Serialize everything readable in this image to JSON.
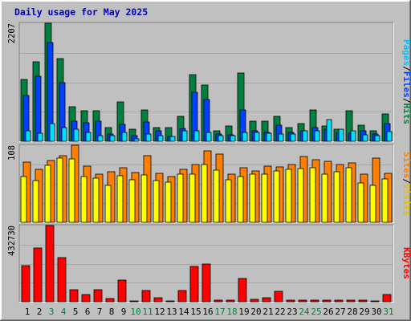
{
  "title": "Daily usage for May 2025",
  "colors": {
    "background": "#c0c0c0",
    "title": "#0000ff",
    "hits": "#008040",
    "files": "#0040ff",
    "pages": "#00e0ff",
    "sites": "#ff8000",
    "visits": "#ffff00",
    "kbytes": "#ff0000",
    "weekend_label": "#008040"
  },
  "legend": {
    "top": [
      {
        "text": "Pages",
        "color": "#00c0ff"
      },
      {
        "text": "/",
        "color": "#000000"
      },
      {
        "text": "Files",
        "color": "#0040ff"
      },
      {
        "text": "/",
        "color": "#000000"
      },
      {
        "text": "Hits",
        "color": "#008040"
      }
    ],
    "middle": [
      {
        "text": "Sites",
        "color": "#ff8000"
      },
      {
        "text": "/",
        "color": "#000000"
      },
      {
        "text": "Visits",
        "color": "#e0c000"
      }
    ],
    "bottom": [
      {
        "text": "KBytes",
        "color": "#ff0000"
      }
    ]
  },
  "chart_data": {
    "type": "bar",
    "title": "Daily usage for May 2025",
    "categories": [
      "1",
      "2",
      "3",
      "4",
      "5",
      "6",
      "7",
      "8",
      "9",
      "10",
      "11",
      "12",
      "13",
      "14",
      "15",
      "16",
      "17",
      "18",
      "19",
      "20",
      "21",
      "22",
      "23",
      "24",
      "25",
      "26",
      "27",
      "28",
      "29",
      "30",
      "31"
    ],
    "weekend_days": [
      "3",
      "4",
      "10",
      "11",
      "17",
      "18",
      "24",
      "25",
      "31"
    ],
    "panels": [
      {
        "name": "hits_files_pages",
        "max_label": "2207",
        "ylim": [
          0,
          2207
        ],
        "series": [
          {
            "name": "Hits",
            "values": [
              1150,
              1480,
              2207,
              1550,
              650,
              570,
              570,
              250,
              740,
              230,
              590,
              250,
              250,
              470,
              1240,
              1050,
              190,
              280,
              1270,
              380,
              380,
              460,
              260,
              330,
              580,
              280,
              230,
              570,
              300,
              190,
              510
            ]
          },
          {
            "name": "Files",
            "values": [
              860,
              1220,
              1850,
              1100,
              380,
              340,
              370,
              140,
              310,
              110,
              360,
              190,
              90,
              240,
              910,
              780,
              140,
              120,
              580,
              190,
              160,
              300,
              160,
              190,
              250,
              220,
              160,
              150,
              190,
              140,
              330
            ]
          },
          {
            "name": "Pages",
            "values": [
              190,
              150,
              330,
              250,
              220,
              170,
              110,
              110,
              170,
              50,
              140,
              100,
              90,
              190,
              200,
              170,
              110,
              110,
              170,
              160,
              150,
              130,
              140,
              200,
              190,
              400,
              230,
              190,
              120,
              110,
              180
            ]
          }
        ]
      },
      {
        "name": "sites_visits",
        "max_label": "108",
        "ylim": [
          0,
          108
        ],
        "series": [
          {
            "name": "Sites",
            "values": [
              84,
              74,
              87,
              93,
              108,
              79,
              67,
              71,
              77,
              70,
              93,
              69,
              64,
              74,
              81,
              100,
              96,
              68,
              76,
              72,
              79,
              78,
              81,
              92,
              88,
              85,
              81,
              83,
              67,
              90,
              69
            ]
          },
          {
            "name": "Visits",
            "values": [
              64,
              58,
              80,
              90,
              89,
              64,
              62,
              52,
              65,
              60,
              66,
              59,
              56,
              68,
              68,
              81,
              73,
              60,
              64,
              67,
              68,
              72,
              74,
              75,
              76,
              68,
              71,
              77,
              55,
              52,
              61
            ]
          }
        ]
      },
      {
        "name": "kbytes",
        "max_label": "432730",
        "ylim": [
          0,
          432730
        ],
        "series": [
          {
            "name": "KBytes",
            "values": [
              205000,
              305000,
              432730,
              250000,
              70000,
              40000,
              70000,
              20000,
              125000,
              5000,
              65000,
              25000,
              6000,
              65000,
              200000,
              215000,
              9000,
              9000,
              130000,
              15000,
              25000,
              60000,
              10000,
              10000,
              10000,
              10000,
              10000,
              10000,
              10000,
              6000,
              40000
            ]
          }
        ]
      }
    ]
  }
}
